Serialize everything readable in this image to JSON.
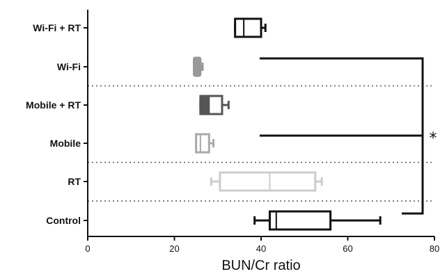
{
  "chart_data": {
    "type": "boxplot",
    "orientation": "horizontal",
    "xlabel": "BUN/Cr ratio",
    "xlim": [
      0,
      80
    ],
    "xticks": [
      0,
      20,
      40,
      60,
      80
    ],
    "grid": false,
    "legend": "none",
    "categories": [
      "Wi-Fi + RT",
      "Wi-Fi",
      "Mobile + RT",
      "Mobile",
      "RT",
      "Control"
    ],
    "boxes": [
      {
        "name": "Wi-Fi + RT",
        "whisker_low": 34,
        "q1": 34,
        "median": 36,
        "q3": 40,
        "whisker_high": 41,
        "color": "#111111",
        "box_fill": "#ffffff",
        "style": "open"
      },
      {
        "name": "Wi-Fi",
        "whisker_low": 24.5,
        "q1": 24.5,
        "median": 25,
        "q3": 26,
        "whisker_high": 26.5,
        "color": "#999999",
        "box_fill": "#999999",
        "style": "filled"
      },
      {
        "name": "Mobile + RT",
        "whisker_low": 26,
        "q1": 26,
        "median": 28,
        "q3": 31,
        "whisker_high": 32.5,
        "color": "#555555",
        "box_fill": "#555555",
        "style": "half-filled"
      },
      {
        "name": "Mobile",
        "whisker_low": 25,
        "q1": 25,
        "median": 26,
        "q3": 28,
        "whisker_high": 29,
        "color": "#aaaaaa",
        "box_fill": "#ffffff",
        "style": "open"
      },
      {
        "name": "RT",
        "whisker_low": 28.5,
        "q1": 30.5,
        "median": 42,
        "q3": 52.5,
        "whisker_high": 54,
        "color": "#cccccc",
        "box_fill": "#ffffff",
        "style": "open"
      },
      {
        "name": "Control",
        "whisker_low": 38.5,
        "q1": 42,
        "median": 43.5,
        "q3": 56,
        "whisker_high": 67.5,
        "color": "#111111",
        "box_fill": "#ffffff",
        "style": "open"
      }
    ],
    "annotations": [
      {
        "type": "significance",
        "text": "*",
        "from_categories": [
          "Wi-Fi",
          "Mobile",
          "Control"
        ]
      }
    ],
    "separators": [
      "Wi-Fi|Mobile + RT",
      "Mobile|RT",
      "RT|Control"
    ],
    "colors": {
      "axis": "#111111",
      "separator": "#555555"
    }
  }
}
